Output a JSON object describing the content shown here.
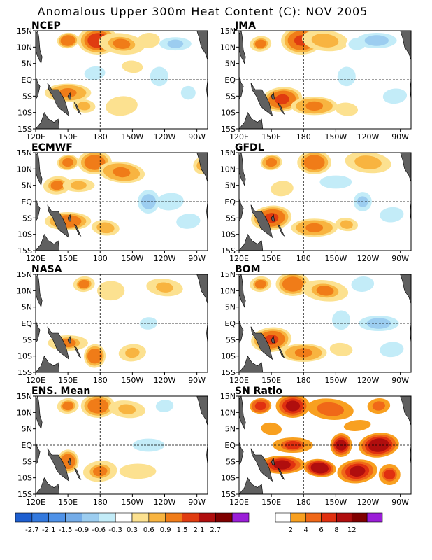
{
  "title": "Anomalous Upper 300m Heat Content (C): NOV 2005",
  "x_ticks": [
    "120E",
    "150E",
    "180",
    "150W",
    "120W",
    "90W"
  ],
  "y_ticks": [
    "15N",
    "10N",
    "5N",
    "EQ",
    "5S",
    "10S",
    "15S"
  ],
  "chart_data": [
    {
      "type": "heatmap",
      "panel": "NCEP",
      "title": "NCEP",
      "xlabel": "",
      "ylabel": "",
      "xlim": [
        "120E",
        "80W"
      ],
      "ylim": [
        "15S",
        "15N"
      ],
      "grid": "dashed lines at EQ and 180",
      "blobs": [
        {
          "lon": 150,
          "lat": 12,
          "value": 1.2
        },
        {
          "lon": 178,
          "lat": 12,
          "value": 1.9
        },
        {
          "lon": 200,
          "lat": 11,
          "value": 0.9
        },
        {
          "lon": 225,
          "lat": 12,
          "value": 0.5
        },
        {
          "lon": 250,
          "lat": 11,
          "value": -0.7
        },
        {
          "lon": 235,
          "lat": 1,
          "value": -0.6
        },
        {
          "lon": 175,
          "lat": 2,
          "value": -0.5
        },
        {
          "lon": 150,
          "lat": -4,
          "value": 1.0
        },
        {
          "lon": 165,
          "lat": -8,
          "value": 0.7
        },
        {
          "lon": 200,
          "lat": -8,
          "value": 0.5
        },
        {
          "lon": 262,
          "lat": -4,
          "value": -0.4
        },
        {
          "lon": 210,
          "lat": 4,
          "value": 0.4
        }
      ]
    },
    {
      "type": "heatmap",
      "panel": "JMA",
      "title": "JMA",
      "xlabel": "",
      "ylabel": "",
      "xlim": [
        "120E",
        "80W"
      ],
      "ylim": [
        "15S",
        "15N"
      ],
      "grid": "dashed lines at EQ and 180",
      "blobs": [
        {
          "lon": 140,
          "lat": 11,
          "value": 0.9
        },
        {
          "lon": 178,
          "lat": 12,
          "value": 1.6
        },
        {
          "lon": 200,
          "lat": 12,
          "value": 0.8
        },
        {
          "lon": 230,
          "lat": 11,
          "value": -0.5
        },
        {
          "lon": 248,
          "lat": 12,
          "value": -0.8
        },
        {
          "lon": 220,
          "lat": 1,
          "value": -0.6
        },
        {
          "lon": 160,
          "lat": -6,
          "value": 1.6
        },
        {
          "lon": 190,
          "lat": -8,
          "value": 1.0
        },
        {
          "lon": 220,
          "lat": -9,
          "value": 0.5
        },
        {
          "lon": 265,
          "lat": -5,
          "value": -0.4
        }
      ]
    },
    {
      "type": "heatmap",
      "panel": "ECMWF",
      "title": "ECMWF",
      "xlabel": "",
      "ylabel": "",
      "xlim": [
        "120E",
        "80W"
      ],
      "ylim": [
        "15S",
        "15N"
      ],
      "grid": "dashed lines at EQ and 180",
      "blobs": [
        {
          "lon": 150,
          "lat": 12,
          "value": 1.0
        },
        {
          "lon": 175,
          "lat": 12,
          "value": 1.4
        },
        {
          "lon": 200,
          "lat": 9,
          "value": 1.0
        },
        {
          "lon": 140,
          "lat": 5,
          "value": 0.9
        },
        {
          "lon": 160,
          "lat": 5,
          "value": 0.7
        },
        {
          "lon": 225,
          "lat": 0,
          "value": -0.9
        },
        {
          "lon": 245,
          "lat": 0,
          "value": -0.6
        },
        {
          "lon": 150,
          "lat": -6,
          "value": 1.3
        },
        {
          "lon": 185,
          "lat": -8,
          "value": 0.8
        },
        {
          "lon": 262,
          "lat": -6,
          "value": -0.4
        },
        {
          "lon": 275,
          "lat": 11,
          "value": 0.6
        }
      ]
    },
    {
      "type": "heatmap",
      "panel": "GFDL",
      "title": "GFDL",
      "xlabel": "",
      "ylabel": "",
      "xlim": [
        "120E",
        "80W"
      ],
      "ylim": [
        "15S",
        "15N"
      ],
      "grid": "dashed lines at EQ and 180",
      "blobs": [
        {
          "lon": 150,
          "lat": 12,
          "value": 1.1
        },
        {
          "lon": 190,
          "lat": 12,
          "value": 1.4
        },
        {
          "lon": 240,
          "lat": 12,
          "value": 0.8
        },
        {
          "lon": 160,
          "lat": 4,
          "value": 0.5
        },
        {
          "lon": 210,
          "lat": 6,
          "value": -0.6
        },
        {
          "lon": 235,
          "lat": 0,
          "value": -0.7
        },
        {
          "lon": 150,
          "lat": -5,
          "value": 1.6
        },
        {
          "lon": 190,
          "lat": -8,
          "value": 1.0
        },
        {
          "lon": 220,
          "lat": -7,
          "value": 0.7
        },
        {
          "lon": 262,
          "lat": -4,
          "value": -0.4
        }
      ]
    },
    {
      "type": "heatmap",
      "panel": "NASA",
      "title": "NASA",
      "xlabel": "",
      "ylabel": "",
      "xlim": [
        "120E",
        "80W"
      ],
      "ylim": [
        "15S",
        "15N"
      ],
      "grid": "dashed lines at EQ and 180",
      "blobs": [
        {
          "lon": 165,
          "lat": 12,
          "value": 0.9
        },
        {
          "lon": 190,
          "lat": 10,
          "value": 0.5
        },
        {
          "lon": 240,
          "lat": 11,
          "value": 0.6
        },
        {
          "lon": 225,
          "lat": 0,
          "value": -0.5
        },
        {
          "lon": 150,
          "lat": -6,
          "value": 0.9
        },
        {
          "lon": 175,
          "lat": -10,
          "value": 1.4
        },
        {
          "lon": 210,
          "lat": -9,
          "value": 0.6
        },
        {
          "lon": 265,
          "lat": -5,
          "value": -0.3
        }
      ]
    },
    {
      "type": "heatmap",
      "panel": "BOM",
      "title": "BOM",
      "xlabel": "",
      "ylabel": "",
      "xlim": [
        "120E",
        "80W"
      ],
      "ylim": [
        "15S",
        "15N"
      ],
      "grid": "dashed lines at EQ and 180",
      "blobs": [
        {
          "lon": 140,
          "lat": 12,
          "value": 0.9
        },
        {
          "lon": 170,
          "lat": 12,
          "value": 1.3
        },
        {
          "lon": 200,
          "lat": 10,
          "value": 0.9
        },
        {
          "lon": 235,
          "lat": 12,
          "value": -0.6
        },
        {
          "lon": 250,
          "lat": 0,
          "value": -0.9
        },
        {
          "lon": 215,
          "lat": 1,
          "value": -0.6
        },
        {
          "lon": 150,
          "lat": -5,
          "value": 1.6
        },
        {
          "lon": 180,
          "lat": -9,
          "value": 1.0
        },
        {
          "lon": 215,
          "lat": -8,
          "value": 0.5
        },
        {
          "lon": 262,
          "lat": -8,
          "value": -0.5
        }
      ]
    },
    {
      "type": "heatmap",
      "panel": "ENS. Mean",
      "title": "ENS. Mean",
      "xlabel": "",
      "ylabel": "",
      "xlim": [
        "120E",
        "80W"
      ],
      "ylim": [
        "15S",
        "15N"
      ],
      "grid": "dashed lines at EQ and 180",
      "blobs": [
        {
          "lon": 150,
          "lat": 12,
          "value": 0.9
        },
        {
          "lon": 178,
          "lat": 12,
          "value": 1.4
        },
        {
          "lon": 205,
          "lat": 11,
          "value": 0.7
        },
        {
          "lon": 240,
          "lat": 12,
          "value": -0.4
        },
        {
          "lon": 225,
          "lat": 0,
          "value": -0.6
        },
        {
          "lon": 150,
          "lat": -5,
          "value": 1.2
        },
        {
          "lon": 180,
          "lat": -8,
          "value": 0.9
        },
        {
          "lon": 215,
          "lat": -8,
          "value": 0.5
        },
        {
          "lon": 262,
          "lat": -5,
          "value": -0.3
        }
      ]
    },
    {
      "type": "heatmap",
      "panel": "SN Ratio",
      "title": "SN Ratio",
      "xlabel": "",
      "ylabel": "",
      "xlim": [
        "120E",
        "80W"
      ],
      "ylim": [
        "15S",
        "15N"
      ],
      "grid": "dashed lines at EQ and 180",
      "blobs": [
        {
          "lon": 140,
          "lat": 12,
          "value": 7
        },
        {
          "lon": 170,
          "lat": 12,
          "value": 9
        },
        {
          "lon": 205,
          "lat": 11,
          "value": 5
        },
        {
          "lon": 250,
          "lat": 12,
          "value": 4
        },
        {
          "lon": 170,
          "lat": 0,
          "value": 6
        },
        {
          "lon": 215,
          "lat": 0,
          "value": 8
        },
        {
          "lon": 250,
          "lat": 0,
          "value": 10
        },
        {
          "lon": 160,
          "lat": -6,
          "value": 9
        },
        {
          "lon": 195,
          "lat": -7,
          "value": 10
        },
        {
          "lon": 230,
          "lat": -8,
          "value": 8
        },
        {
          "lon": 260,
          "lat": -9,
          "value": 6
        },
        {
          "lon": 150,
          "lat": 5,
          "value": 3
        },
        {
          "lon": 230,
          "lat": 6,
          "value": 3
        }
      ]
    }
  ],
  "colorbars": [
    {
      "name": "anomaly",
      "labels": [
        "-2.7",
        "-2.1",
        "-1.5",
        "-0.9",
        "-0.6",
        "-0.3",
        "0.3",
        "0.6",
        "0.9",
        "1.5",
        "2.1",
        "2.7"
      ],
      "thresholds": [
        -2.7,
        -2.1,
        -1.5,
        -0.9,
        -0.6,
        -0.3,
        0.3,
        0.6,
        0.9,
        1.5,
        2.1,
        2.7
      ],
      "colors": [
        "#1e5fd0",
        "#3379de",
        "#4f92e8",
        "#74ace8",
        "#9ccdf0",
        "#c3ecf8",
        "#ffffff",
        "#fce190",
        "#f8b440",
        "#f07c18",
        "#e03c10",
        "#b00e0e",
        "#7f0000",
        "#9b1ed8"
      ]
    },
    {
      "name": "sn_ratio",
      "labels": [
        "2",
        "4",
        "6",
        "8",
        "12"
      ],
      "thresholds": [
        2,
        4,
        6,
        8,
        12
      ],
      "colors": [
        "#ffffff",
        "#f8a020",
        "#f06818",
        "#e03010",
        "#b00e0e",
        "#800000",
        "#9b1ed8"
      ]
    }
  ],
  "colors": {
    "land": "#606060",
    "coast": "#000000",
    "frame": "#000000"
  }
}
